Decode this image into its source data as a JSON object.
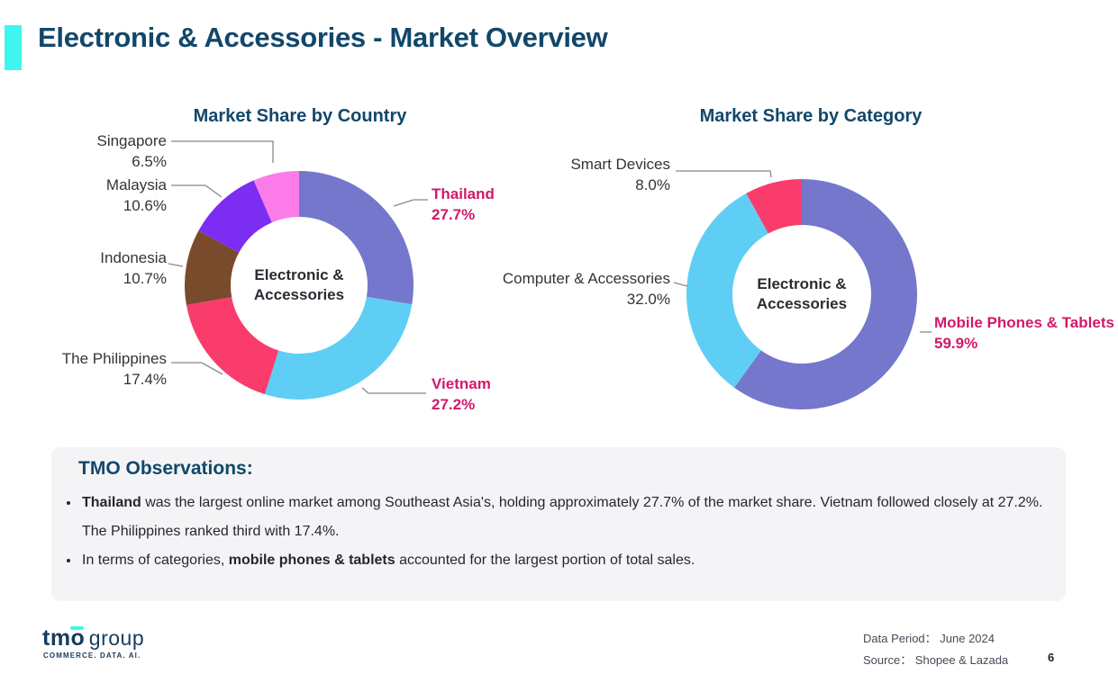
{
  "slide": {
    "title": "Electronic & Accessories - Market Overview",
    "page_number": "6"
  },
  "footer": {
    "data_period": "Data Period： June 2024",
    "source": "Source： Shopee & Lazada",
    "logo": {
      "brand": "tmo",
      "suffix": "group",
      "tagline": "COMMERCE. DATA. AI."
    }
  },
  "observations": {
    "heading": "TMO Observations:",
    "bullets": [
      {
        "pre": "",
        "bold": "Thailand",
        "post": " was the largest online market among Southeast Asia's, holding approximately 27.7% of the market share. Vietnam followed closely at 27.2%. The Philippines ranked third with 17.4%."
      },
      {
        "pre": "In terms of categories, ",
        "bold": "mobile phones & tablets",
        "post": " accounted for the largest portion of total sales."
      }
    ]
  },
  "colors": {
    "accent_cyan": "#3FF6EE",
    "heading_teal": "#12476A",
    "highlight_pink": "#D2186B",
    "label_dark": "#33333B",
    "leader_gray": "#888888",
    "observations_bg": "#F4F4F6"
  },
  "chart_data": [
    {
      "type": "pie",
      "donut": true,
      "title": "Market Share by Country",
      "center_lines": [
        "Electronic &",
        "Accessories"
      ],
      "legend_position": "none",
      "series": [
        {
          "name": "Thailand",
          "value": 27.7,
          "display": "27.7%",
          "color": "#7477CB",
          "highlight": true
        },
        {
          "name": "Vietnam",
          "value": 27.2,
          "display": "27.2%",
          "color": "#5FCEF5",
          "highlight": true
        },
        {
          "name": "The Philippines",
          "value": 17.4,
          "display": "17.4%",
          "color": "#FA3C6C",
          "highlight": false
        },
        {
          "name": "Indonesia",
          "value": 10.7,
          "display": "10.7%",
          "color": "#7A4A2D",
          "highlight": false
        },
        {
          "name": "Malaysia",
          "value": 10.6,
          "display": "10.6%",
          "color": "#7C2DF2",
          "highlight": false
        },
        {
          "name": "Singapore",
          "value": 6.5,
          "display": "6.5%",
          "color": "#FB7CE9",
          "highlight": false
        }
      ]
    },
    {
      "type": "pie",
      "donut": true,
      "title": "Market Share by Category",
      "center_lines": [
        "Electronic &",
        "Accessories"
      ],
      "legend_position": "none",
      "series": [
        {
          "name": "Mobile Phones & Tablets",
          "value": 59.9,
          "display": "59.9%",
          "color": "#7477CB",
          "highlight": true
        },
        {
          "name": "Computer & Accessories",
          "value": 32.0,
          "display": "32.0%",
          "color": "#5FCEF5",
          "highlight": false
        },
        {
          "name": "Smart Devices",
          "value": 8.0,
          "display": "8.0%",
          "color": "#FA3C6C",
          "highlight": false
        }
      ]
    }
  ]
}
